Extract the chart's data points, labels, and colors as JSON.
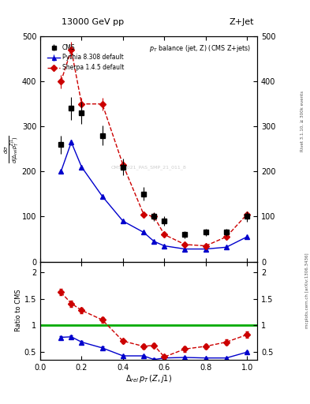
{
  "title_top": "13000 GeV pp",
  "title_right": "Z+Jet",
  "panel_title": "p_{T} balance (jet, Z) (CMS Z+jets)",
  "ylabel_main": "d#sigma/d(#Delta_{rel}p_{T}^{Zj1})",
  "ylabel_ratio": "Ratio to CMS",
  "xlabel": "#Delta_{rel} p_{T} (Z,j1)",
  "rivet_label": "Rivet 3.1.10, >= 300k events",
  "mcplots_label": "mcplots.cern.ch [arXiv:1306.3436]",
  "cms_watermark": "CMS_2021_PAS_SMP_21_011_8",
  "cms_x": [
    0.1,
    0.15,
    0.2,
    0.3,
    0.4,
    0.5,
    0.55,
    0.6,
    0.7,
    0.8,
    0.9,
    1.0
  ],
  "cms_y": [
    260,
    340,
    330,
    280,
    210,
    150,
    100,
    90,
    60,
    65,
    65,
    100
  ],
  "cms_yerr": [
    20,
    25,
    25,
    22,
    18,
    15,
    10,
    10,
    8,
    8,
    8,
    12
  ],
  "pythia_x": [
    0.1,
    0.15,
    0.2,
    0.3,
    0.4,
    0.5,
    0.55,
    0.6,
    0.7,
    0.8,
    0.9,
    1.0
  ],
  "pythia_y": [
    200,
    265,
    210,
    145,
    90,
    65,
    45,
    35,
    28,
    28,
    32,
    55
  ],
  "pythia_yerr": [
    5,
    6,
    5,
    4,
    3,
    3,
    2,
    2,
    1.5,
    1.5,
    2,
    3
  ],
  "sherpa_x": [
    0.1,
    0.15,
    0.2,
    0.3,
    0.4,
    0.5,
    0.55,
    0.6,
    0.7,
    0.8,
    0.9,
    1.0
  ],
  "sherpa_y": [
    400,
    470,
    350,
    350,
    215,
    105,
    100,
    60,
    38,
    35,
    55,
    105
  ],
  "sherpa_yerr": [
    15,
    18,
    14,
    14,
    10,
    7,
    7,
    5,
    3,
    3,
    4,
    7
  ],
  "pythia_ratio_x": [
    0.1,
    0.15,
    0.2,
    0.3,
    0.4,
    0.5,
    0.55,
    0.6,
    0.7,
    0.8,
    0.9,
    1.0
  ],
  "pythia_ratio_y": [
    0.77,
    0.78,
    0.68,
    0.57,
    0.42,
    0.42,
    0.35,
    0.38,
    0.39,
    0.38,
    0.38,
    0.49
  ],
  "pythia_ratio_yerr": [
    0.025,
    0.025,
    0.025,
    0.025,
    0.02,
    0.02,
    0.02,
    0.02,
    0.015,
    0.015,
    0.015,
    0.02
  ],
  "sherpa_ratio_x": [
    0.1,
    0.15,
    0.2,
    0.3,
    0.4,
    0.5,
    0.55,
    0.6,
    0.7,
    0.8,
    0.9,
    1.0
  ],
  "sherpa_ratio_y": [
    1.62,
    1.41,
    1.28,
    1.1,
    0.7,
    0.6,
    0.62,
    0.4,
    0.55,
    0.6,
    0.68,
    0.82
  ],
  "sherpa_ratio_yerr": [
    0.06,
    0.06,
    0.05,
    0.05,
    0.04,
    0.04,
    0.04,
    0.04,
    0.05,
    0.05,
    0.05,
    0.06
  ],
  "cms_color": "#000000",
  "pythia_color": "#0000cc",
  "sherpa_color": "#cc0000",
  "ratio_line_color": "#00aa00",
  "ylim_main": [
    0,
    500
  ],
  "ylim_ratio": [
    0.35,
    2.2
  ],
  "xlim": [
    0.0,
    1.05
  ],
  "yticks_main": [
    0,
    100,
    200,
    300,
    400,
    500
  ],
  "ytick_labels_main": [
    "0",
    "100",
    "200",
    "300",
    "400",
    "500"
  ],
  "yticks_ratio": [
    0.5,
    1.0,
    1.5,
    2.0
  ],
  "ytick_labels_ratio": [
    "0.5",
    "1",
    "1.5",
    "2"
  ],
  "xticks": [
    0.0,
    0.2,
    0.4,
    0.6,
    0.8,
    1.0
  ],
  "legend_labels": [
    "CMS",
    "Pythia 8.308 default",
    "Sherpa 1.4.5 default"
  ]
}
